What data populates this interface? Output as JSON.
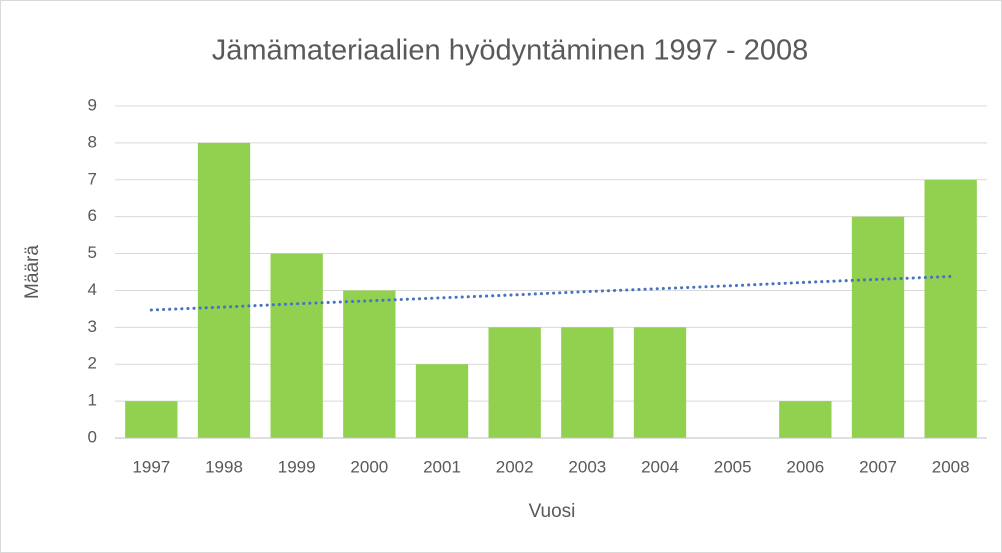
{
  "chart_data": {
    "type": "bar",
    "title": "Jämämateriaalien hyödyntäminen 1997 - 2008",
    "x_label": "Vuosi",
    "y_label": "Määrä",
    "categories": [
      "1997",
      "1998",
      "1999",
      "2000",
      "2001",
      "2002",
      "2003",
      "2004",
      "2005",
      "2006",
      "2007",
      "2008"
    ],
    "values": [
      1,
      8,
      5,
      4,
      2,
      3,
      3,
      3,
      0,
      1,
      6,
      7
    ],
    "color": "#92d050",
    "trendline": {
      "color": "#4472c4",
      "values": [
        3.47,
        3.55,
        3.64,
        3.72,
        3.8,
        3.88,
        3.97,
        4.05,
        4.13,
        4.22,
        4.3,
        4.38
      ]
    },
    "ylim": [
      0,
      9
    ],
    "yticks": [
      0,
      1,
      2,
      3,
      4,
      5,
      6,
      7,
      8,
      9
    ],
    "grid": true
  }
}
